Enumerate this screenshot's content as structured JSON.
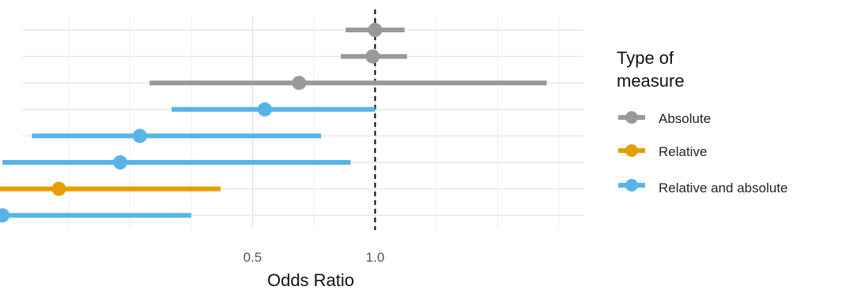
{
  "chart_data": {
    "type": "forest",
    "xlabel": "Odds Ratio",
    "x_ticks": [
      {
        "value": 0.5,
        "label": "0.5"
      },
      {
        "value": 1.0,
        "label": "1.0"
      }
    ],
    "xlim": [
      -0.44,
      1.85
    ],
    "reference_line": 1.0,
    "grid": true,
    "legend": {
      "title": [
        "Type of",
        "measure"
      ],
      "position": "right",
      "items": [
        {
          "label": "Absolute",
          "color": "#999999"
        },
        {
          "label": "Relative",
          "color": "#E69F00"
        },
        {
          "label": "Relative and absolute",
          "color": "#56B4E9"
        }
      ]
    },
    "points": [
      {
        "estimate": 1.0,
        "lower": 0.88,
        "upper": 1.12,
        "type": "Absolute"
      },
      {
        "estimate": 0.99,
        "lower": 0.86,
        "upper": 1.13,
        "type": "Absolute"
      },
      {
        "estimate": 0.69,
        "lower": 0.08,
        "upper": 1.7,
        "type": "Absolute"
      },
      {
        "estimate": 0.55,
        "lower": 0.17,
        "upper": 1.0,
        "type": "Relative and absolute"
      },
      {
        "estimate": 0.04,
        "lower": -0.4,
        "upper": 0.78,
        "type": "Relative and absolute"
      },
      {
        "estimate": -0.04,
        "lower": -0.52,
        "upper": 0.9,
        "type": "Relative and absolute"
      },
      {
        "estimate": -0.29,
        "lower": -0.63,
        "upper": 0.37,
        "type": "Relative"
      },
      {
        "estimate": -0.52,
        "lower": -0.8,
        "upper": 0.25,
        "type": "Relative and absolute"
      }
    ]
  }
}
